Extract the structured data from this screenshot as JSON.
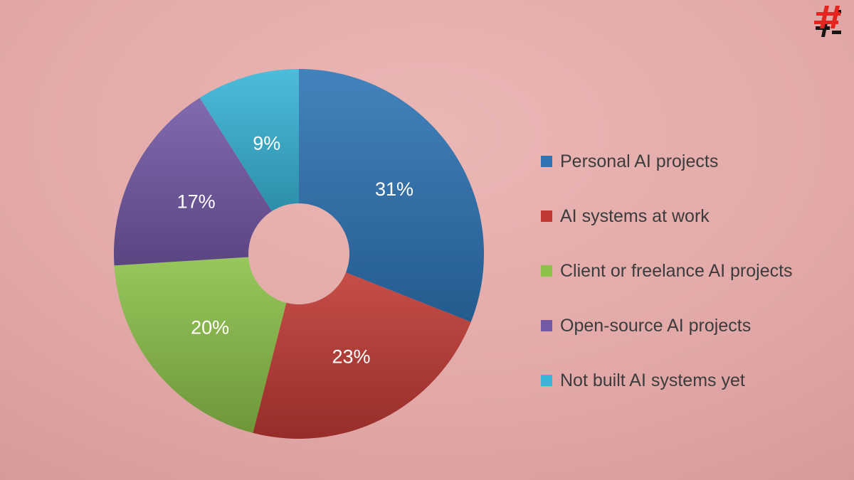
{
  "chart_data": {
    "type": "pie",
    "subtype": "donut",
    "title": "",
    "legend_position": "right",
    "start_angle_deg": 0,
    "direction": "clockwise",
    "inner_radius_ratio": 0.27,
    "categories": [
      "Personal AI projects",
      "AI systems at work",
      "Client or freelance AI projects",
      "Open-source AI projects",
      "Not built AI systems yet"
    ],
    "values": [
      31,
      23,
      20,
      17,
      9
    ],
    "labels": [
      "31%",
      "23%",
      "20%",
      "17%",
      "9%"
    ],
    "colors": [
      "#2e75b6",
      "#c03a34",
      "#8dc14a",
      "#7459a6",
      "#38b6d8"
    ]
  },
  "colors": {
    "background": "#e2a9a8",
    "legend_text": "#3c3c3c",
    "slice_label_text": "#ffffff",
    "logo_red": "#e4251f",
    "logo_black": "#151515"
  },
  "logo": {
    "icon": "glitch-hashtag-logo"
  }
}
